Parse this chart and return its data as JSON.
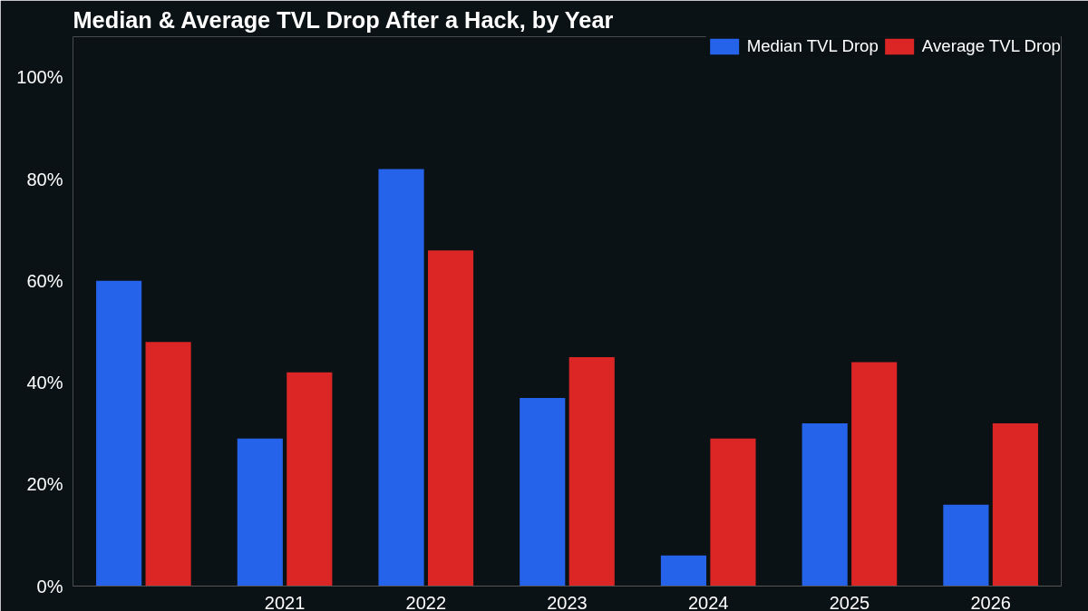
{
  "chart_data": {
    "type": "bar",
    "title": "Median & Average TVL Drop After a Hack, by Year",
    "categories": [
      null,
      "2021",
      "2022",
      "2023",
      "2024",
      "2025",
      "2026"
    ],
    "series": [
      {
        "name": "Median TVL Drop",
        "color": "#2563eb",
        "values": [
          60,
          29,
          82,
          37,
          6,
          32,
          16
        ]
      },
      {
        "name": "Average TVL Drop",
        "color": "#dc2626",
        "values": [
          48,
          42,
          66,
          45,
          29,
          44,
          32
        ]
      }
    ],
    "ylim": [
      0,
      108
    ],
    "yticks": [
      {
        "value": 0,
        "label": "0%"
      },
      {
        "value": 20,
        "label": "20%"
      },
      {
        "value": 40,
        "label": "40%"
      },
      {
        "value": 60,
        "label": "60%"
      },
      {
        "value": 80,
        "label": "80%"
      },
      {
        "value": 100,
        "label": "100%"
      }
    ],
    "grid": false,
    "legend": "top right"
  }
}
